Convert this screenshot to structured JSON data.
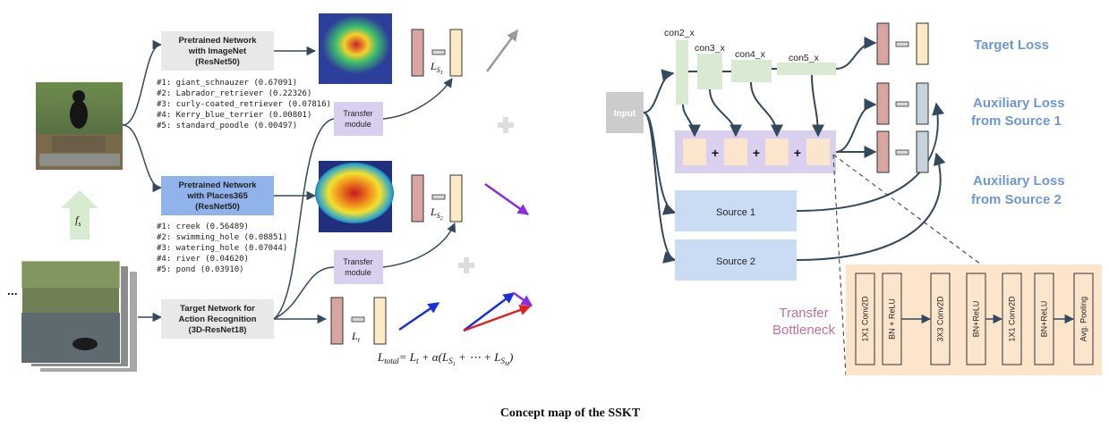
{
  "caption": "Concept map of the SSKT",
  "left": {
    "net_imagenet": [
      "Pretrained Network",
      "with ImageNet",
      "(ResNet50)"
    ],
    "imagenet_preds": [
      "#1: giant_schnauzer (0.67091)",
      "#2: Labrador_retriever (0.22326)",
      "#3: curly-coated_retriever (0.07816)",
      "#4: Kerry_blue_terrier (0.00801)",
      "#5: standard_poodle (0.00497)"
    ],
    "net_places": [
      "Pretrained Network",
      "with  Places365",
      "(ResNet50)"
    ],
    "places_preds": [
      "#1: creek (0.56489)",
      "#2: swimming_hole (0.08851)",
      "#3: watering_hole (0.07044)",
      "#4: river (0.04620)",
      "#5: pond (0.03910)"
    ],
    "net_target": [
      "Target Network for",
      "Action Recognition",
      "(3D-ResNet18)"
    ],
    "transfer_module": [
      "Transfer",
      "module"
    ],
    "fs_label": "f",
    "fs_sub": "s",
    "loss_s1": "L",
    "loss_s1_sub": "S",
    "loss_s1_subsub": "1",
    "loss_s2": "L",
    "loss_s2_sub": "S",
    "loss_s2_subsub": "2",
    "loss_t": "L",
    "loss_t_sub": "t",
    "total_loss": "L",
    "total_loss_sub": "total",
    "total_loss_rhs": "= L",
    "total_rhs_t": "t",
    "total_rhs_mid": " + α(L",
    "total_rhs_s": "S",
    "total_rhs_1": "1",
    "total_rhs_dots": " + ⋯ + L",
    "total_rhs_M": "M",
    "total_rhs_end": ")",
    "ellipsis": "..."
  },
  "right": {
    "input": "Input",
    "stages": [
      "con2_x",
      "con3_x",
      "con4_x",
      "con5_x"
    ],
    "plus": "+",
    "source1": "Source 1",
    "source2": "Source 2",
    "target_loss": "Target Loss",
    "aux1": [
      "Auxiliary Loss",
      "from Source 1"
    ],
    "aux2": [
      "Auxiliary Loss",
      "from Source 2"
    ],
    "bottleneck": [
      "Transfer",
      "Bottleneck"
    ],
    "bottleneck_layers": [
      "1X1 Conv2D",
      "BN + ReLU",
      "3X3 Conv2D",
      "BN+ReLU",
      "1X1 Conv2D",
      "BN+ReLU",
      "Avg. Pooling"
    ]
  },
  "colors": {
    "gray_box": "#e8e8e8",
    "blue_box": "#8fb3ea",
    "lavender": "#d8d0ee",
    "pink_rect": "#d9a5a0",
    "cream_rect": "#fdebc6",
    "slate_rect": "#c7d3dc",
    "green_stage": "#d9ead3",
    "source_box": "#c9dcf4",
    "bottleneck_bg": "#fde5cc",
    "peach": "#fce5cd",
    "accent_blue": "#6f97d6",
    "accent_pink": "#c46f9c"
  },
  "icons": [
    "dog-photo",
    "video-frames",
    "heatmap-imagenet",
    "heatmap-places",
    "plus-icon",
    "up-arrow"
  ]
}
